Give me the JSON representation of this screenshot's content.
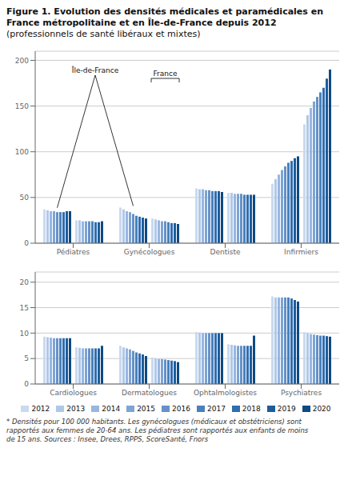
{
  "chart_data": [
    {
      "type": "bar",
      "title": "Figure 1. Evolution des densités médicales et paramédicales en France métropolitaine et en Île-de-France depuis 2012",
      "subtitle": "(professionnels de santé libéraux et mixtes)",
      "categories": [
        "Pédiatres",
        "Gynécologues",
        "Dentiste",
        "Infirmiers"
      ],
      "series": [
        {
          "name": "2012",
          "color": "#c8daf0",
          "values": [
            37,
            39,
            60,
            65
          ]
        },
        {
          "name": "2013",
          "color": "#b0c8e8",
          "values": [
            36,
            37,
            59,
            70
          ]
        },
        {
          "name": "2014",
          "color": "#98b6e0",
          "values": [
            35,
            35,
            59,
            75
          ]
        },
        {
          "name": "2015",
          "color": "#7ea4d4",
          "values": [
            35,
            34,
            58,
            80
          ]
        },
        {
          "name": "2016",
          "color": "#6492c8",
          "values": [
            34,
            32,
            58,
            84
          ]
        },
        {
          "name": "2017",
          "color": "#4a80bc",
          "values": [
            34,
            30,
            57,
            88
          ]
        },
        {
          "name": "2018",
          "color": "#306eb0",
          "values": [
            34,
            29,
            57,
            90
          ]
        },
        {
          "name": "2019",
          "color": "#1e5c9a",
          "values": [
            35,
            28,
            57,
            93
          ]
        },
        {
          "name": "2020",
          "color": "#0d4a84",
          "values": [
            35,
            27,
            56,
            95
          ]
        },
        {
          "name": "2012",
          "color": "#c8daf0",
          "values": [
            25,
            27,
            55,
            130
          ]
        },
        {
          "name": "2013",
          "color": "#b0c8e8",
          "values": [
            25,
            26,
            55,
            140
          ]
        },
        {
          "name": "2014",
          "color": "#98b6e0",
          "values": [
            24,
            25,
            54,
            148
          ]
        },
        {
          "name": "2015",
          "color": "#7ea4d4",
          "values": [
            24,
            24,
            54,
            155
          ]
        },
        {
          "name": "2016",
          "color": "#6492c8",
          "values": [
            24,
            24,
            54,
            160
          ]
        },
        {
          "name": "2017",
          "color": "#4a80bc",
          "values": [
            24,
            23,
            53,
            165
          ]
        },
        {
          "name": "2018",
          "color": "#306eb0",
          "values": [
            23,
            22,
            53,
            170
          ]
        },
        {
          "name": "2019",
          "color": "#1e5c9a",
          "values": [
            23,
            22,
            53,
            180
          ]
        },
        {
          "name": "2020",
          "color": "#0d4a84",
          "values": [
            24,
            21,
            53,
            190
          ]
        }
      ],
      "ylim": [
        0,
        210
      ],
      "yticks": [
        0,
        50,
        100,
        150,
        200
      ],
      "grid": true,
      "annotations": [
        "Île-de-France",
        "France"
      ]
    },
    {
      "type": "bar",
      "categories": [
        "Cardiologues",
        "Dermatologues",
        "Ophtalmologistes",
        "Psychiatres"
      ],
      "series": [
        {
          "name": "2012",
          "color": "#c8daf0",
          "values": [
            9.3,
            7.5,
            10.2,
            17.2
          ]
        },
        {
          "name": "2013",
          "color": "#b0c8e8",
          "values": [
            9.2,
            7.2,
            10.1,
            17.0
          ]
        },
        {
          "name": "2014",
          "color": "#98b6e0",
          "values": [
            9.1,
            7.0,
            10.0,
            17.0
          ]
        },
        {
          "name": "2015",
          "color": "#7ea4d4",
          "values": [
            9.0,
            6.8,
            10.0,
            17.0
          ]
        },
        {
          "name": "2016",
          "color": "#6492c8",
          "values": [
            9.0,
            6.5,
            10.0,
            17.0
          ]
        },
        {
          "name": "2017",
          "color": "#4a80bc",
          "values": [
            9.0,
            6.2,
            10.0,
            17.0
          ]
        },
        {
          "name": "2018",
          "color": "#306eb0",
          "values": [
            9.0,
            6.0,
            10.0,
            16.8
          ]
        },
        {
          "name": "2019",
          "color": "#1e5c9a",
          "values": [
            9.0,
            5.8,
            10.0,
            16.5
          ]
        },
        {
          "name": "2020",
          "color": "#0d4a84",
          "values": [
            9.0,
            5.5,
            10.0,
            16.2
          ]
        },
        {
          "name": "2012",
          "color": "#c8daf0",
          "values": [
            7.2,
            5.2,
            7.8,
            10.2
          ]
        },
        {
          "name": "2013",
          "color": "#b0c8e8",
          "values": [
            7.1,
            5.0,
            7.7,
            10.0
          ]
        },
        {
          "name": "2014",
          "color": "#98b6e0",
          "values": [
            7.0,
            4.9,
            7.6,
            9.8
          ]
        },
        {
          "name": "2015",
          "color": "#7ea4d4",
          "values": [
            7.0,
            4.9,
            7.5,
            9.7
          ]
        },
        {
          "name": "2016",
          "color": "#6492c8",
          "values": [
            7.0,
            4.8,
            7.5,
            9.6
          ]
        },
        {
          "name": "2017",
          "color": "#4a80bc",
          "values": [
            7.0,
            4.7,
            7.5,
            9.5
          ]
        },
        {
          "name": "2018",
          "color": "#306eb0",
          "values": [
            7.0,
            4.6,
            7.5,
            9.5
          ]
        },
        {
          "name": "2019",
          "color": "#1e5c9a",
          "values": [
            7.0,
            4.5,
            7.5,
            9.4
          ]
        },
        {
          "name": "2020",
          "color": "#0d4a84",
          "values": [
            7.5,
            4.3,
            9.5,
            9.3
          ]
        }
      ],
      "ylim": [
        0,
        22
      ],
      "yticks": [
        0,
        5,
        10,
        15,
        20
      ],
      "grid": true,
      "legend": "bottom",
      "footnote": "* Densités pour 100 000 habitants. Les gynécologues (médicaux et obstétriciens) sont\nrapportés aux femmes de 20-64 ans. Les pédiatres sont rapportés aux enfants de moins\nde 15 ans. Sources : Insee, Drees, RPPS, ScoreSanté, Fnors"
    }
  ]
}
